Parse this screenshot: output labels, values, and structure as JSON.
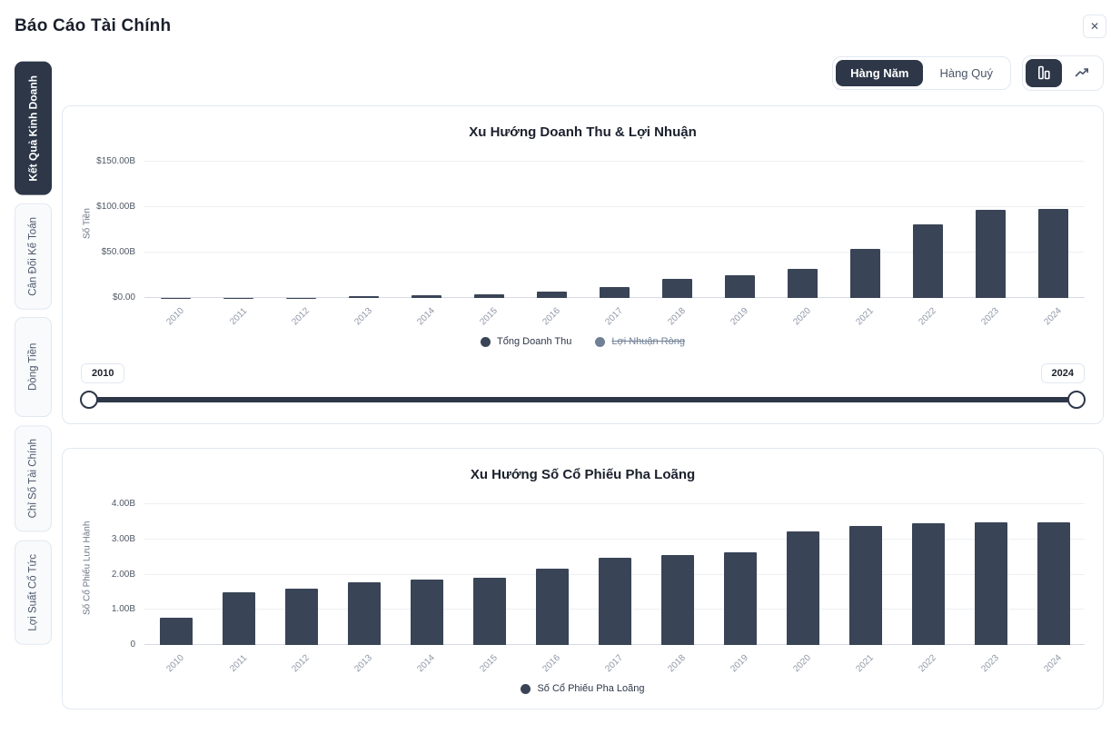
{
  "header": {
    "title": "Báo Cáo Tài Chính",
    "close_label": "✕"
  },
  "toolbar": {
    "period_toggle": {
      "options": [
        {
          "label": "Hàng Năm",
          "active": true
        },
        {
          "label": "Hàng Quý",
          "active": false
        }
      ]
    },
    "chart_type_toggle": {
      "options": [
        {
          "icon": "bar-chart-icon",
          "active": true
        },
        {
          "icon": "line-chart-icon",
          "active": false
        }
      ]
    }
  },
  "sidebar": {
    "tabs": [
      {
        "label": "Kết Quả Kinh Doanh",
        "active": true
      },
      {
        "label": "Cân Đối Kế Toán",
        "active": false
      },
      {
        "label": "Dòng Tiền",
        "active": false
      },
      {
        "label": "Chỉ Số Tài Chính",
        "active": false
      },
      {
        "label": "Lợi Suất Cổ Tức",
        "active": false
      }
    ]
  },
  "range_slider": {
    "start_label": "2010",
    "end_label": "2024"
  },
  "colors": {
    "accent_dark": "#2d3748",
    "bar": "#394456",
    "border": "#e2e8f0",
    "disabled_series": "#718096"
  },
  "chart_data": [
    {
      "type": "bar",
      "title": "Xu Hướng Doanh Thu & Lợi Nhuận",
      "ylabel": "Số Tiền",
      "xlabel": "",
      "categories": [
        "2010",
        "2011",
        "2012",
        "2013",
        "2014",
        "2015",
        "2016",
        "2017",
        "2018",
        "2019",
        "2020",
        "2021",
        "2022",
        "2023",
        "2024"
      ],
      "series": [
        {
          "name": "Tổng Doanh Thu",
          "visible": true,
          "color": "#394456",
          "values": [
            0.12,
            0.2,
            0.41,
            2.01,
            3.2,
            4.05,
            7.0,
            11.76,
            21.46,
            24.58,
            31.54,
            53.82,
            81.46,
            96.77,
            97.69
          ]
        },
        {
          "name": "Lợi Nhuận Ròng",
          "visible": false,
          "color": "#718096",
          "values": []
        }
      ],
      "ylim": [
        0,
        150
      ],
      "yticks": [
        {
          "value": 0,
          "label": "$0.00"
        },
        {
          "value": 50,
          "label": "$50.00B"
        },
        {
          "value": 100,
          "label": "$100.00B"
        },
        {
          "value": 150,
          "label": "$150.00B"
        }
      ],
      "grid": true,
      "legend_position": "bottom"
    },
    {
      "type": "bar",
      "title": "Xu Hướng Số Cổ Phiếu Pha Loãng",
      "ylabel": "Số Cổ Phiếu Lưu Hành",
      "xlabel": "",
      "categories": [
        "2010",
        "2011",
        "2012",
        "2013",
        "2014",
        "2015",
        "2016",
        "2017",
        "2018",
        "2019",
        "2020",
        "2021",
        "2022",
        "2023",
        "2024"
      ],
      "series": [
        {
          "name": "Số Cổ Phiếu Pha Loãng",
          "visible": true,
          "color": "#394456",
          "values": [
            0.77,
            1.51,
            1.6,
            1.78,
            1.87,
            1.91,
            2.16,
            2.47,
            2.56,
            2.64,
            3.23,
            3.38,
            3.46,
            3.48,
            3.49
          ]
        }
      ],
      "ylim": [
        0,
        4
      ],
      "yticks": [
        {
          "value": 0,
          "label": "0"
        },
        {
          "value": 1,
          "label": "1.00B"
        },
        {
          "value": 2,
          "label": "2.00B"
        },
        {
          "value": 3,
          "label": "3.00B"
        },
        {
          "value": 4,
          "label": "4.00B"
        }
      ],
      "grid": true,
      "legend_position": "bottom"
    }
  ]
}
